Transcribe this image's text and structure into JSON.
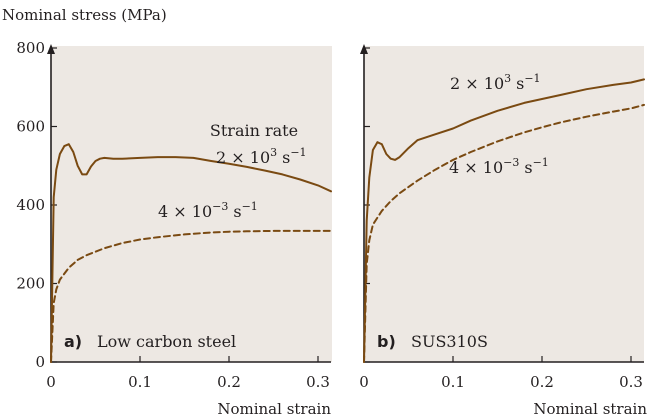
{
  "figure": {
    "y_axis_title": "Nominal stress (MPa)",
    "x_axis_title": "Nominal strain",
    "panel_background": "#ede8e3",
    "panel_letter_color": "#d9651e",
    "curve_color": "#7a4a12"
  },
  "chart_data": [
    {
      "type": "line",
      "panel_letter": "a)",
      "panel_label": "Low carbon steel",
      "xlabel": "Nominal strain",
      "ylabel": "Nominal stress (MPa)",
      "xlim": [
        0,
        0.32
      ],
      "ylim": [
        0,
        800
      ],
      "x_ticks": [
        0,
        0.1,
        0.2,
        0.3
      ],
      "x_tick_labels": [
        "0",
        "0.1",
        "0.2",
        "0.3"
      ],
      "y_ticks": [
        0,
        200,
        400,
        600,
        800
      ],
      "y_tick_labels": [
        "0",
        "200",
        "400",
        "600",
        "800"
      ],
      "grid": false,
      "series": [
        {
          "name": "Strain rate",
          "name_display": "Strain rate",
          "rate_base": "2 × 10",
          "rate_exp": "3",
          "rate_unit": "s",
          "rate_unit_exp": "−1",
          "style": "solid",
          "x": [
            0,
            0.003,
            0.006,
            0.01,
            0.015,
            0.02,
            0.025,
            0.03,
            0.035,
            0.04,
            0.045,
            0.05,
            0.055,
            0.06,
            0.07,
            0.08,
            0.1,
            0.12,
            0.14,
            0.16,
            0.18,
            0.2,
            0.22,
            0.24,
            0.26,
            0.28,
            0.3,
            0.32
          ],
          "y": [
            0,
            420,
            490,
            530,
            550,
            555,
            535,
            500,
            478,
            478,
            498,
            512,
            518,
            520,
            518,
            518,
            520,
            522,
            522,
            520,
            512,
            505,
            497,
            488,
            478,
            465,
            450,
            435
          ]
        },
        {
          "name": "",
          "rate_base": "4 × 10",
          "rate_exp": "−3",
          "rate_unit": "s",
          "rate_unit_exp": "−1",
          "style": "dashed",
          "x": [
            0,
            0.003,
            0.006,
            0.01,
            0.02,
            0.03,
            0.04,
            0.06,
            0.08,
            0.1,
            0.12,
            0.15,
            0.18,
            0.2,
            0.22,
            0.25,
            0.28,
            0.3,
            0.32
          ],
          "y": [
            0,
            150,
            185,
            210,
            240,
            260,
            272,
            290,
            303,
            312,
            318,
            325,
            330,
            332,
            333,
            334,
            334,
            334,
            334
          ]
        }
      ]
    },
    {
      "type": "line",
      "panel_letter": "b)",
      "panel_label": "SUS310S",
      "xlabel": "Nominal strain",
      "xlim": [
        0,
        0.32
      ],
      "ylim": [
        0,
        800
      ],
      "x_ticks": [
        0,
        0.1,
        0.2,
        0.3
      ],
      "x_tick_labels": [
        "0",
        "0.1",
        "0.2",
        "0.3"
      ],
      "grid": false,
      "series": [
        {
          "name": "",
          "rate_base": "2 × 10",
          "rate_exp": "3",
          "rate_unit": "s",
          "rate_unit_exp": "−1",
          "style": "solid",
          "x": [
            0,
            0.003,
            0.006,
            0.01,
            0.015,
            0.02,
            0.025,
            0.03,
            0.035,
            0.04,
            0.05,
            0.06,
            0.08,
            0.1,
            0.12,
            0.15,
            0.18,
            0.2,
            0.22,
            0.25,
            0.28,
            0.3,
            0.32
          ],
          "y": [
            0,
            360,
            470,
            540,
            560,
            555,
            530,
            518,
            515,
            522,
            545,
            565,
            580,
            595,
            615,
            640,
            660,
            670,
            680,
            695,
            706,
            712,
            720
          ]
        },
        {
          "name": "",
          "rate_base": "4 × 10",
          "rate_exp": "−3",
          "rate_unit": "s",
          "rate_unit_exp": "−1",
          "style": "dashed",
          "x": [
            0,
            0.003,
            0.006,
            0.01,
            0.02,
            0.03,
            0.04,
            0.06,
            0.08,
            0.1,
            0.12,
            0.15,
            0.18,
            0.2,
            0.22,
            0.25,
            0.28,
            0.3,
            0.32
          ],
          "y": [
            0,
            250,
            310,
            350,
            385,
            410,
            430,
            462,
            490,
            515,
            535,
            562,
            585,
            598,
            610,
            625,
            638,
            646,
            655
          ]
        }
      ]
    }
  ]
}
